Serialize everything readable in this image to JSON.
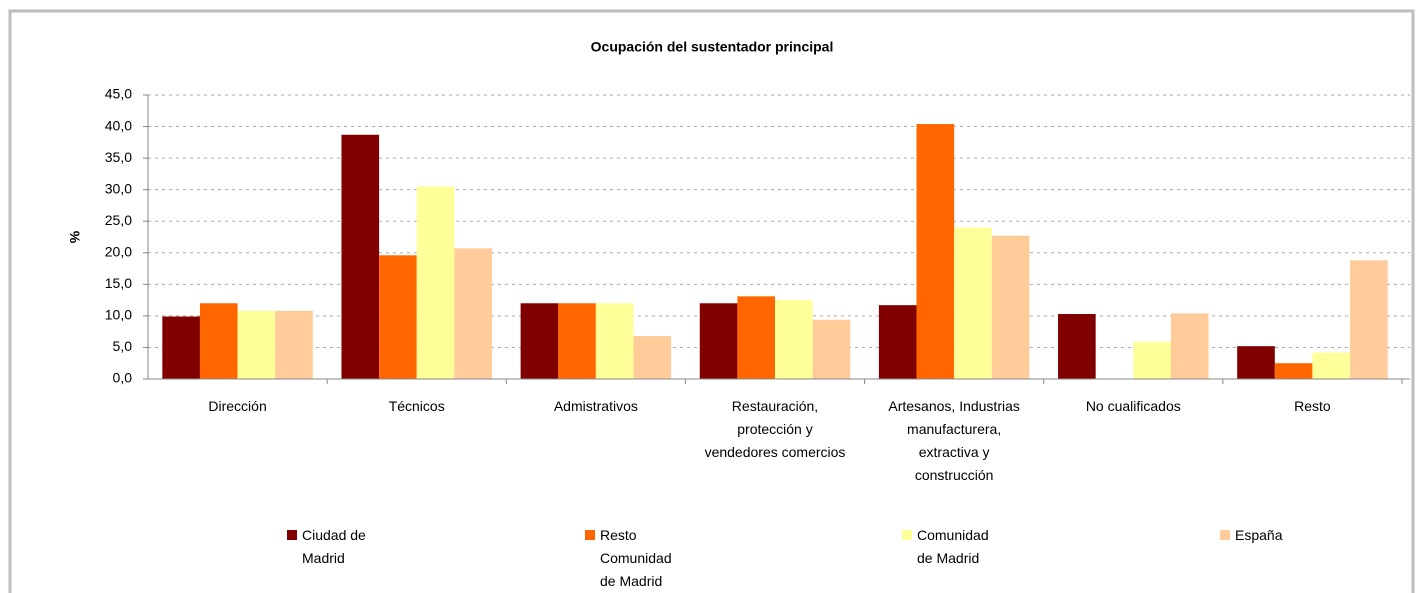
{
  "chart_data": {
    "type": "bar",
    "title": "Ocupación del sustentador principal",
    "y_label": "%",
    "categories": [
      "Dirección",
      "Técnicos",
      "Admistrativos",
      "Restauración, protección y vendedores comercios",
      "Artesanos, Industrias manufacturera, extractiva y construcción",
      "No cualificados",
      "Resto"
    ],
    "series": [
      {
        "name": "Ciudad de Madrid",
        "color": "#800000",
        "values": [
          9.9,
          38.7,
          12.0,
          12.0,
          11.7,
          10.3,
          5.2
        ]
      },
      {
        "name": "Resto Comunidad de Madrid",
        "color": "#ff6600",
        "values": [
          12.0,
          19.6,
          12.0,
          13.1,
          40.4,
          null,
          2.5
        ]
      },
      {
        "name": "Comunidad de Madrid",
        "color": "#ffff99",
        "values": [
          10.8,
          30.5,
          12.0,
          12.5,
          24.0,
          5.9,
          4.2
        ]
      },
      {
        "name": "España",
        "color": "#ffcc99",
        "values": [
          10.8,
          20.7,
          6.8,
          9.4,
          22.7,
          10.4,
          18.8
        ]
      }
    ],
    "ylim": [
      0,
      45
    ],
    "yticks": [
      {
        "value": 0,
        "label": "0,0"
      },
      {
        "value": 5,
        "label": "5,0"
      },
      {
        "value": 10,
        "label": "10,0"
      },
      {
        "value": 15,
        "label": "15,0"
      },
      {
        "value": 20,
        "label": "20,0"
      },
      {
        "value": 25,
        "label": "25,0"
      },
      {
        "value": 30,
        "label": "30,0"
      },
      {
        "value": 35,
        "label": "35,0"
      },
      {
        "value": 40,
        "label": "40,0"
      },
      {
        "value": 45,
        "label": "45,0"
      }
    ],
    "grid": true,
    "legend": "bottom"
  }
}
